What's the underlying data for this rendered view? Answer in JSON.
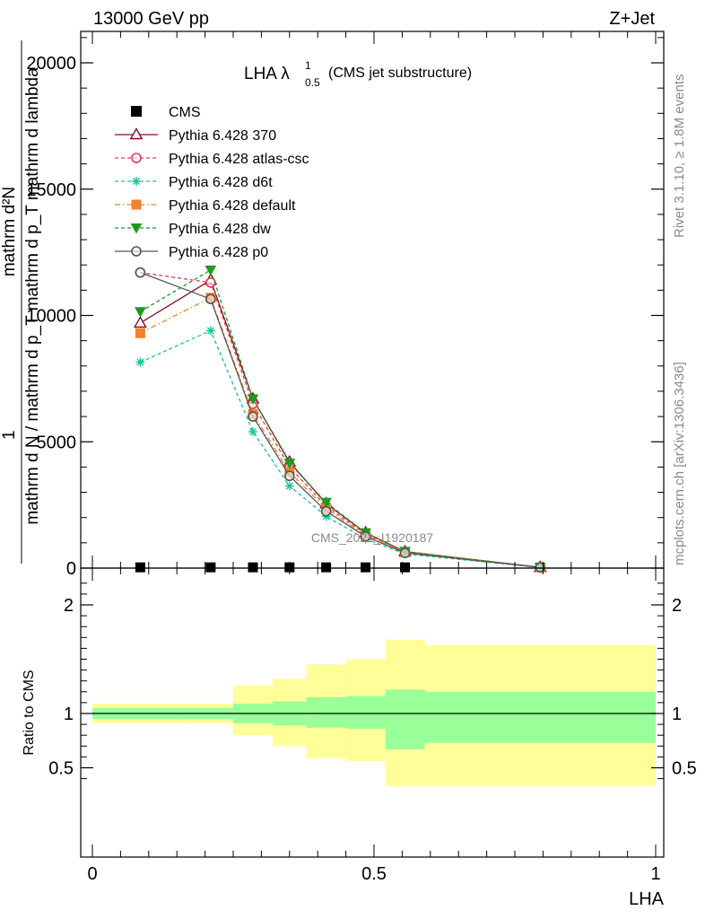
{
  "header": {
    "left": "13000 GeV pp",
    "right": "Z+Jet"
  },
  "side_labels": {
    "rivet": "Rivet 3.1.10, ≥ 1.8M events",
    "mcplots": "mcplots.cern.ch [arXiv:1306.3436]"
  },
  "chart_data": [
    {
      "type": "line",
      "title_main": "LHA λ",
      "title_sup": "1",
      "title_sub": "0.5",
      "title_suffix": "(CMS jet substructure)",
      "watermark": "CMS_2021_I1920187",
      "ylabel_top": "1",
      "ylabel_numer": "mathrm d²N",
      "ylabel_denom": "mathrm d N / mathrm d p_T mathrm d p_T mathrm d lambda",
      "xlim": [
        0,
        1
      ],
      "ylim": [
        0,
        22000
      ],
      "yticks": [
        0,
        5000,
        10000,
        15000,
        20000
      ],
      "ytick_labels": [
        "0",
        "5000",
        "10000",
        "15000",
        "20000"
      ],
      "series": [
        {
          "name": "CMS",
          "color": "#000000",
          "marker": "square-filled",
          "dash": "none",
          "x": [
            0.085,
            0.21,
            0.285,
            0.35,
            0.415,
            0.485,
            0.555
          ],
          "y": [
            30,
            30,
            30,
            30,
            30,
            30,
            30
          ]
        },
        {
          "name": "Pythia 6.428 370",
          "color": "#8b0a1e",
          "marker": "triangle-open",
          "dash": "solid",
          "x": [
            0.085,
            0.21,
            0.285,
            0.35,
            0.415,
            0.485,
            0.555,
            0.795
          ],
          "y": [
            9700,
            11400,
            6700,
            4200,
            2550,
            1400,
            650,
            30
          ]
        },
        {
          "name": "Pythia 6.428 atlas-csc",
          "color": "#e8365a",
          "marker": "circle-open",
          "dash": "dashed",
          "x": [
            0.085,
            0.21,
            0.285,
            0.35,
            0.415,
            0.485,
            0.555,
            0.795
          ],
          "y": [
            11700,
            11300,
            6500,
            4000,
            2450,
            1350,
            640,
            30
          ]
        },
        {
          "name": "Pythia 6.428 d6t",
          "color": "#17c59a",
          "marker": "star",
          "dash": "dashed",
          "x": [
            0.085,
            0.21,
            0.285,
            0.35,
            0.415,
            0.485,
            0.555,
            0.795
          ],
          "y": [
            8150,
            9400,
            5400,
            3250,
            2050,
            1150,
            560,
            25
          ]
        },
        {
          "name": "Pythia 6.428 default",
          "color": "#f4812c",
          "marker": "square-filled",
          "dash": "dashdot",
          "x": [
            0.085,
            0.21,
            0.285,
            0.35,
            0.415,
            0.485,
            0.555,
            0.795
          ],
          "y": [
            9300,
            10700,
            6100,
            3800,
            2350,
            1300,
            620,
            28
          ]
        },
        {
          "name": "Pythia 6.428 dw",
          "color": "#1f9a1f",
          "marker": "triangle-down-filled",
          "dash": "dashed",
          "x": [
            0.085,
            0.21,
            0.285,
            0.35,
            0.415,
            0.485,
            0.555,
            0.795
          ],
          "y": [
            10150,
            11800,
            6700,
            4150,
            2600,
            1400,
            660,
            30
          ]
        },
        {
          "name": "Pythia 6.428 p0",
          "color": "#555555",
          "marker": "circle-open",
          "dash": "solid",
          "x": [
            0.085,
            0.21,
            0.285,
            0.35,
            0.415,
            0.485,
            0.555,
            0.795
          ],
          "y": [
            11700,
            10650,
            6000,
            3650,
            2250,
            1250,
            600,
            28
          ]
        }
      ]
    },
    {
      "type": "area",
      "ylabel": "Ratio to CMS",
      "xlabel": "LHA",
      "xlim": [
        0,
        1
      ],
      "ylim": [
        0.33,
        2.3
      ],
      "xticks": [
        0,
        0.5,
        1
      ],
      "xtick_labels": [
        "0",
        "0.5",
        "1"
      ],
      "yticks": [
        0.5,
        1,
        2
      ],
      "ytick_labels": [
        "0.5",
        "1",
        "2"
      ],
      "reference_line": 1,
      "bin_edges": [
        0,
        0.17,
        0.25,
        0.32,
        0.38,
        0.45,
        0.52,
        0.59,
        1.0
      ],
      "band_inner": {
        "color": "#99ff99",
        "low": [
          0.95,
          0.95,
          0.91,
          0.89,
          0.87,
          0.86,
          0.67,
          0.73
        ],
        "high": [
          1.05,
          1.05,
          1.09,
          1.11,
          1.15,
          1.16,
          1.22,
          1.2
        ]
      },
      "band_outer": {
        "color": "#ffff99",
        "low": [
          0.91,
          0.91,
          0.8,
          0.7,
          0.59,
          0.56,
          0.33,
          0.33
        ],
        "high": [
          1.09,
          1.09,
          1.26,
          1.32,
          1.45,
          1.5,
          1.68,
          1.63
        ]
      }
    }
  ]
}
